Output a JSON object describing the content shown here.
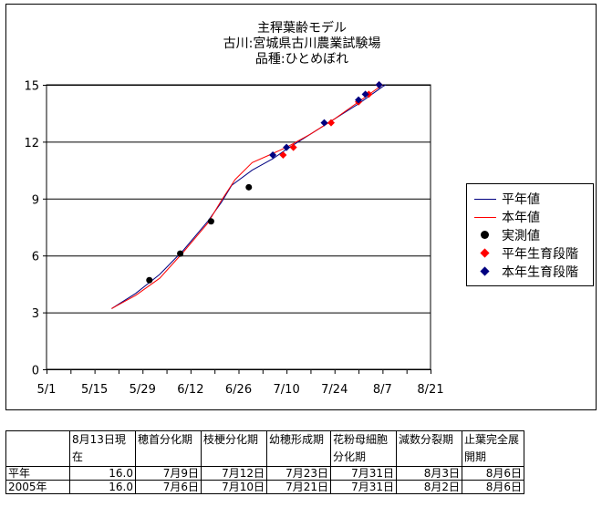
{
  "chart": {
    "title_lines": [
      "主稈葉齢モデル",
      "古川:宮城県古川農業試験場",
      "品種:ひとめぼれ"
    ],
    "legend": [
      {
        "label": "平年値",
        "kind": "line",
        "color": "#000080"
      },
      {
        "label": "本年値",
        "kind": "line",
        "color": "#ff0000"
      },
      {
        "label": "実測値",
        "kind": "circle",
        "color": "#000000"
      },
      {
        "label": "平年生育段階",
        "kind": "diamond",
        "color": "#ff0000"
      },
      {
        "label": "本年生育段階",
        "kind": "diamond",
        "color": "#000080"
      }
    ]
  },
  "chart_data": {
    "type": "line",
    "x_unit": "date (May 1 – Aug 21)",
    "x_ticks": [
      "5/1",
      "5/15",
      "5/29",
      "6/12",
      "6/26",
      "7/10",
      "7/24",
      "8/7",
      "8/21"
    ],
    "y_ticks": [
      "0",
      "3",
      "6",
      "9",
      "12",
      "15"
    ],
    "ylim": [
      0,
      15
    ],
    "xlim": [
      "5/1",
      "8/21"
    ],
    "grid": "horizontal",
    "legend_position": "right",
    "series": [
      {
        "name": "平年値",
        "kind": "line",
        "color": "#000080",
        "points": [
          [
            "5/20",
            3.2
          ],
          [
            "5/27",
            4.0
          ],
          [
            "6/3",
            5.0
          ],
          [
            "6/10",
            6.3
          ],
          [
            "6/17",
            7.8
          ],
          [
            "6/21",
            8.8
          ],
          [
            "6/24",
            9.7
          ],
          [
            "6/30",
            10.5
          ],
          [
            "7/6",
            11.1
          ],
          [
            "7/10",
            11.6
          ],
          [
            "7/17",
            12.4
          ],
          [
            "7/24",
            13.2
          ],
          [
            "7/31",
            14.0
          ],
          [
            "8/7",
            14.9
          ],
          [
            "8/8",
            15.0
          ]
        ]
      },
      {
        "name": "本年値",
        "kind": "line",
        "color": "#ff0000",
        "points": [
          [
            "5/20",
            3.2
          ],
          [
            "5/27",
            3.9
          ],
          [
            "6/3",
            4.8
          ],
          [
            "6/10",
            6.2
          ],
          [
            "6/17",
            7.7
          ],
          [
            "6/21",
            8.9
          ],
          [
            "6/25",
            10.0
          ],
          [
            "6/30",
            10.9
          ],
          [
            "7/5",
            11.3
          ],
          [
            "7/10",
            11.7
          ],
          [
            "7/17",
            12.4
          ],
          [
            "7/24",
            13.2
          ],
          [
            "7/31",
            14.1
          ],
          [
            "8/7",
            15.0
          ]
        ]
      },
      {
        "name": "実測値",
        "kind": "circle",
        "color": "#000000",
        "points": [
          [
            "5/31",
            4.7
          ],
          [
            "6/9",
            6.1
          ],
          [
            "6/18",
            7.8
          ],
          [
            "6/29",
            9.6
          ]
        ]
      },
      {
        "name": "平年生育段階",
        "kind": "diamond",
        "color": "#ff0000",
        "points": [
          [
            "7/9",
            11.3
          ],
          [
            "7/12",
            11.7
          ],
          [
            "7/23",
            13.0
          ],
          [
            "7/31",
            14.1
          ],
          [
            "8/3",
            14.5
          ],
          [
            "8/6",
            15.0
          ]
        ]
      },
      {
        "name": "本年生育段階",
        "kind": "diamond",
        "color": "#000080",
        "points": [
          [
            "7/6",
            11.3
          ],
          [
            "7/10",
            11.7
          ],
          [
            "7/21",
            13.0
          ],
          [
            "7/31",
            14.2
          ],
          [
            "8/2",
            14.5
          ],
          [
            "8/6",
            15.0
          ]
        ]
      }
    ]
  },
  "table": {
    "header": [
      "",
      "8月13日現在",
      "穂首分化期",
      "枝梗分化期",
      "幼穂形成期",
      "花粉母細胞分化期",
      "減数分裂期",
      "止葉完全展開期"
    ],
    "rows": [
      [
        "平年",
        "16.0",
        "7月9日",
        "7月12日",
        "7月23日",
        "7月31日",
        "8月3日",
        "8月6日"
      ],
      [
        "2005年",
        "16.0",
        "7月6日",
        "7月10日",
        "7月21日",
        "7月31日",
        "8月2日",
        "8月6日"
      ]
    ]
  }
}
